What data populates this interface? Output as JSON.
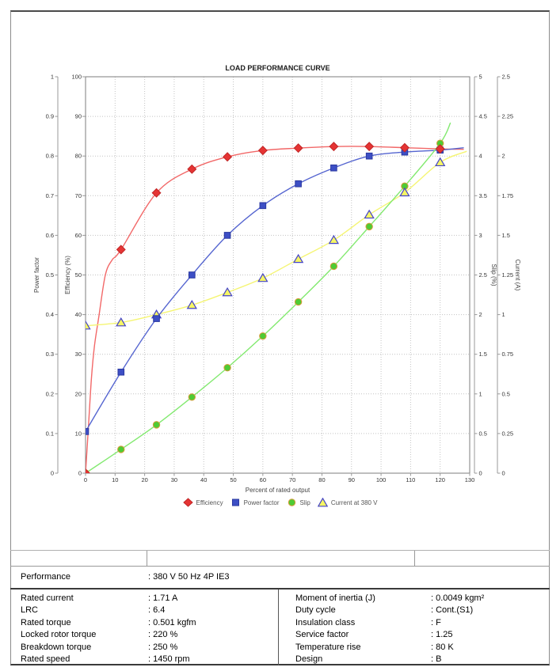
{
  "chart_data": {
    "type": "line",
    "title": "LOAD PERFORMANCE CURVE",
    "xlabel": "Percent of rated output",
    "grid": true,
    "legend_position": "bottom",
    "x_axis": {
      "title": "Percent of rated output",
      "min": 0,
      "max": 130,
      "ticks": [
        "0",
        "10",
        "20",
        "30",
        "40",
        "50",
        "60",
        "70",
        "80",
        "90",
        "100",
        "110",
        "120",
        "130"
      ]
    },
    "axes": [
      {
        "id": "power_factor",
        "title": "Power factor",
        "side": "left",
        "min": 0,
        "max": 1,
        "ticks": [
          "0",
          "0.1",
          "0.2",
          "0.3",
          "0.4",
          "0.5",
          "0.6",
          "0.7",
          "0.8",
          "0.9",
          "1"
        ]
      },
      {
        "id": "efficiency",
        "title": "Efficiency (%)",
        "side": "left",
        "min": 0,
        "max": 100,
        "ticks": [
          "0",
          "10",
          "20",
          "30",
          "40",
          "50",
          "60",
          "70",
          "80",
          "90",
          "100"
        ]
      },
      {
        "id": "slip",
        "title": "Slip (%)",
        "side": "right",
        "min": 0,
        "max": 5,
        "ticks": [
          "0",
          "0.5",
          "1",
          "1.5",
          "2",
          "2.5",
          "3",
          "3.5",
          "4",
          "4.5",
          "5"
        ]
      },
      {
        "id": "current",
        "title": "Current (A)",
        "side": "right",
        "min": 0,
        "max": 2.5,
        "ticks": [
          "0",
          "0.25",
          "0.5",
          "0.75",
          "1",
          "1.25",
          "1.5",
          "1.75",
          "2",
          "2.25",
          "2.5"
        ]
      }
    ],
    "x": [
      0,
      12,
      24,
      36,
      48,
      60,
      72,
      84,
      96,
      108,
      120
    ],
    "series": [
      {
        "name": "Efficiency",
        "axis": "efficiency",
        "marker": "diamond",
        "marker_fill": "#e53434",
        "marker_stroke": "#c12626",
        "line_color": "#f26868",
        "values": [
          0,
          56.4,
          70.7,
          76.7,
          79.8,
          81.4,
          82.0,
          82.4,
          82.4,
          82.1,
          81.8
        ],
        "curve_points": [
          [
            1,
            12
          ],
          [
            2,
            24
          ],
          [
            3,
            32
          ],
          [
            4.5,
            39.5
          ],
          [
            6.7,
            50
          ],
          [
            9,
            53.8
          ]
        ],
        "line_end": {
          "x": 128,
          "value": 81.7
        }
      },
      {
        "name": "Power factor",
        "axis": "power_factor",
        "marker": "square",
        "marker_fill": "#3d4fc5",
        "marker_stroke": "#2a38a0",
        "line_color": "#5565d0",
        "values": [
          0.105,
          0.255,
          0.39,
          0.5,
          0.6,
          0.675,
          0.73,
          0.77,
          0.8,
          0.81,
          0.815
        ],
        "curve_points": [],
        "line_end": {
          "x": 128,
          "value": 0.821
        }
      },
      {
        "name": "Slip",
        "axis": "slip",
        "marker": "circle",
        "marker_fill": "#4ecb34",
        "marker_stroke": "#d89b3a",
        "line_color": "#82e96f",
        "values": [
          0,
          0.3,
          0.61,
          0.96,
          1.33,
          1.73,
          2.16,
          2.61,
          3.11,
          3.62,
          4.16
        ],
        "curve_points": [],
        "line_end": {
          "x": 123.5,
          "value": 4.42
        }
      },
      {
        "name": "Current at 380 V",
        "axis": "current",
        "marker": "triangle",
        "marker_fill": "#f6f664",
        "marker_stroke": "#4444c8",
        "line_color": "#f5f573",
        "values": [
          0.93,
          0.95,
          1.0,
          1.06,
          1.14,
          1.23,
          1.35,
          1.47,
          1.63,
          1.77,
          1.96
        ],
        "curve_points": [],
        "line_end": {
          "x": 129,
          "value": 2.03
        }
      }
    ]
  },
  "table": {
    "performance": {
      "label": "Performance",
      "value": ": 380 V 50 Hz 4P IE3"
    },
    "left_rows": [
      {
        "label": "Rated current",
        "value": ": 1.71 A"
      },
      {
        "label": "LRC",
        "value": ": 6.4"
      },
      {
        "label": "Rated torque",
        "value": ": 0.501 kgfm"
      },
      {
        "label": "Locked rotor torque",
        "value": ": 220 %"
      },
      {
        "label": "Breakdown torque",
        "value": ": 250 %"
      },
      {
        "label": "Rated speed",
        "value": ": 1450 rpm"
      }
    ],
    "right_rows": [
      {
        "label": "Moment of inertia (J)",
        "value": ": 0.0049 kgm²"
      },
      {
        "label": "Duty cycle",
        "value": ": Cont.(S1)"
      },
      {
        "label": "Insulation class",
        "value": ": F"
      },
      {
        "label": "Service factor",
        "value": ": 1.25"
      },
      {
        "label": "Temperature rise",
        "value": ": 80 K"
      },
      {
        "label": "Design",
        "value": ": B"
      }
    ]
  }
}
